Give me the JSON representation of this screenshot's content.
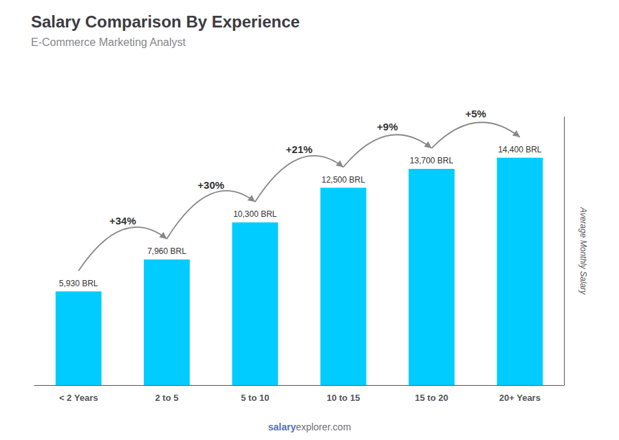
{
  "chart_data": {
    "type": "bar",
    "title": "Salary Comparison By Experience",
    "subtitle": "E-Commerce Marketing Analyst",
    "ylabel": "Average Monthly Salary",
    "categories": [
      "< 2 Years",
      "2 to 5",
      "5 to 10",
      "10 to 15",
      "15 to 20",
      "20+ Years"
    ],
    "values": [
      5930,
      7960,
      10300,
      12500,
      13700,
      14400
    ],
    "value_labels": [
      "5,930 BRL",
      "7,960 BRL",
      "10,300 BRL",
      "12,500 BRL",
      "13,700 BRL",
      "14,400 BRL"
    ],
    "annotations": [
      "+34%",
      "+30%",
      "+21%",
      "+9%",
      "+5%"
    ],
    "watermark": [
      "salary",
      "explorer.com"
    ],
    "color": "#00ccff",
    "ylim": [
      0,
      17000
    ],
    "grid": false,
    "data_labels": true,
    "tick_labels": "x"
  }
}
